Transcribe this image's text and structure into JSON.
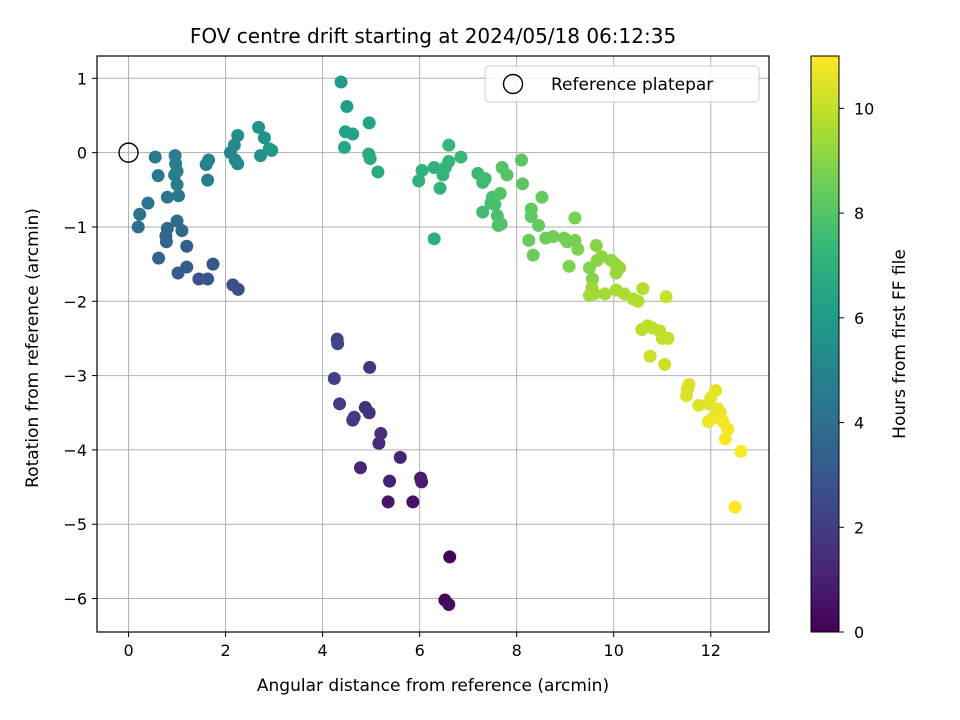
{
  "chart_data": {
    "type": "scatter",
    "title": "FOV centre drift starting at 2024/05/18 06:12:35",
    "xlabel": "Angular distance from reference (arcmin)",
    "ylabel": "Rotation from reference (arcmin)",
    "xlim": [
      -0.65,
      13.2
    ],
    "ylim": [
      -6.45,
      1.3
    ],
    "xticks": [
      0,
      2,
      4,
      6,
      8,
      10,
      12
    ],
    "yticks": [
      1,
      0,
      -1,
      -2,
      -3,
      -4,
      -5,
      -6
    ],
    "grid": true,
    "legend": {
      "label": "Reference platepar",
      "position": "top-right"
    },
    "reference_point": [
      0,
      0
    ],
    "colorbar": {
      "label": "Hours from first FF file",
      "range": [
        0,
        11
      ],
      "ticks": [
        0,
        2,
        4,
        6,
        8,
        10
      ],
      "colormap": "viridis"
    },
    "colormap_stops": [
      "#440154",
      "#482878",
      "#3e4989",
      "#31688e",
      "#26828e",
      "#1f9e89",
      "#35b779",
      "#6ece58",
      "#b5de2b",
      "#fde725"
    ],
    "series": [
      {
        "points": [
          [
            6.62,
            -5.44,
            0.1
          ],
          [
            6.52,
            -6.02,
            0.2
          ],
          [
            6.6,
            -6.08,
            0.3
          ],
          [
            5.86,
            -4.7,
            0.6
          ],
          [
            5.35,
            -4.7,
            0.7
          ],
          [
            6.02,
            -4.38,
            0.8
          ],
          [
            6.04,
            -4.43,
            0.9
          ],
          [
            5.38,
            -4.42,
            1.0
          ],
          [
            5.6,
            -4.1,
            1.1
          ],
          [
            4.78,
            -4.24,
            1.2
          ],
          [
            5.16,
            -3.91,
            1.3
          ],
          [
            5.2,
            -3.78,
            1.4
          ],
          [
            4.96,
            -3.5,
            1.5
          ],
          [
            4.88,
            -3.43,
            1.6
          ],
          [
            4.97,
            -2.89,
            1.7
          ],
          [
            4.62,
            -3.6,
            1.8
          ],
          [
            4.65,
            -3.56,
            1.9
          ],
          [
            4.35,
            -3.38,
            2.0
          ],
          [
            4.24,
            -3.04,
            2.1
          ],
          [
            4.3,
            -2.51,
            2.2
          ],
          [
            4.31,
            -2.57,
            2.3
          ],
          [
            2.26,
            -1.84,
            2.6
          ],
          [
            2.15,
            -1.78,
            2.7
          ],
          [
            1.45,
            -1.7,
            2.8
          ],
          [
            1.63,
            -1.7,
            2.9
          ],
          [
            1.74,
            -1.5,
            3.0
          ],
          [
            1.2,
            -1.54,
            3.1
          ],
          [
            1.02,
            -1.62,
            3.2
          ],
          [
            1.2,
            -1.26,
            3.3
          ],
          [
            0.62,
            -1.42,
            3.4
          ],
          [
            0.78,
            -1.2,
            3.5
          ],
          [
            0.77,
            -1.12,
            3.6
          ],
          [
            0.8,
            -1.02,
            3.7
          ],
          [
            1.1,
            -1.05,
            3.8
          ],
          [
            1.0,
            -0.92,
            3.9
          ],
          [
            0.2,
            -1.0,
            4.0
          ],
          [
            0.23,
            -0.83,
            4.1
          ],
          [
            0.4,
            -0.68,
            4.2
          ],
          [
            0.8,
            -0.6,
            4.3
          ],
          [
            1.03,
            -0.58,
            4.35
          ],
          [
            0.61,
            -0.31,
            4.4
          ],
          [
            0.55,
            -0.06,
            4.45
          ],
          [
            1.0,
            -0.43,
            4.5
          ],
          [
            0.95,
            -0.3,
            4.55
          ],
          [
            0.96,
            -0.04,
            4.6
          ],
          [
            0.97,
            -0.15,
            4.65
          ],
          [
            1.0,
            -0.25,
            4.7
          ],
          [
            1.63,
            -0.37,
            4.75
          ],
          [
            1.6,
            -0.16,
            4.8
          ],
          [
            1.65,
            -0.1,
            4.9
          ],
          [
            2.1,
            0.0,
            5.0
          ],
          [
            2.2,
            -0.1,
            5.1
          ],
          [
            2.25,
            -0.15,
            5.2
          ],
          [
            2.18,
            0.1,
            5.3
          ],
          [
            2.25,
            0.23,
            5.4
          ],
          [
            2.72,
            -0.04,
            5.5
          ],
          [
            2.68,
            0.34,
            5.6
          ],
          [
            2.8,
            0.2,
            5.7
          ],
          [
            2.9,
            0.05,
            5.8
          ],
          [
            2.95,
            0.03,
            5.9
          ],
          [
            4.38,
            0.95,
            6.0
          ],
          [
            4.5,
            0.62,
            6.1
          ],
          [
            4.47,
            0.28,
            6.2
          ],
          [
            4.62,
            0.25,
            6.3
          ],
          [
            4.96,
            0.4,
            6.4
          ],
          [
            4.45,
            0.07,
            6.5
          ],
          [
            4.95,
            -0.02,
            6.6
          ],
          [
            4.98,
            -0.08,
            6.7
          ],
          [
            5.14,
            -0.26,
            6.8
          ],
          [
            6.3,
            -1.16,
            6.9
          ],
          [
            5.98,
            -0.38,
            7.0
          ],
          [
            6.05,
            -0.24,
            7.05
          ],
          [
            6.3,
            -0.2,
            7.1
          ],
          [
            6.42,
            -0.48,
            7.15
          ],
          [
            6.48,
            -0.3,
            7.2
          ],
          [
            6.53,
            -0.2,
            7.25
          ],
          [
            6.6,
            -0.12,
            7.3
          ],
          [
            6.6,
            0.1,
            7.35
          ],
          [
            6.85,
            -0.06,
            7.4
          ],
          [
            7.2,
            -0.28,
            7.45
          ],
          [
            7.3,
            -0.4,
            7.5
          ],
          [
            7.35,
            -0.35,
            7.55
          ],
          [
            7.3,
            -0.8,
            7.6
          ],
          [
            7.47,
            -0.68,
            7.65
          ],
          [
            7.5,
            -0.6,
            7.7
          ],
          [
            7.55,
            -0.7,
            7.75
          ],
          [
            7.6,
            -0.85,
            7.8
          ],
          [
            7.62,
            -0.98,
            7.85
          ],
          [
            7.68,
            -0.96,
            7.9
          ],
          [
            7.66,
            -0.55,
            7.95
          ],
          [
            7.7,
            -0.2,
            8.0
          ],
          [
            7.8,
            -0.3,
            8.05
          ],
          [
            8.1,
            -0.1,
            8.1
          ],
          [
            8.12,
            -0.42,
            8.15
          ],
          [
            8.3,
            -0.76,
            8.2
          ],
          [
            8.3,
            -0.86,
            8.25
          ],
          [
            8.45,
            -0.98,
            8.3
          ],
          [
            8.52,
            -0.6,
            8.35
          ],
          [
            8.25,
            -1.18,
            8.4
          ],
          [
            8.34,
            -1.38,
            8.45
          ],
          [
            8.6,
            -1.15,
            8.5
          ],
          [
            8.75,
            -1.13,
            8.55
          ],
          [
            8.98,
            -1.15,
            8.6
          ],
          [
            9.04,
            -1.2,
            8.65
          ],
          [
            9.2,
            -1.18,
            8.7
          ],
          [
            9.2,
            -0.88,
            8.75
          ],
          [
            9.26,
            -1.3,
            8.8
          ],
          [
            9.08,
            -1.53,
            8.85
          ],
          [
            9.5,
            -1.55,
            8.9
          ],
          [
            9.56,
            -1.7,
            8.95
          ],
          [
            9.64,
            -1.25,
            9.0
          ],
          [
            9.66,
            -1.45,
            9.05
          ],
          [
            9.75,
            -1.4,
            9.1
          ],
          [
            9.95,
            -1.45,
            9.15
          ],
          [
            10.04,
            -1.5,
            9.2
          ],
          [
            10.12,
            -1.55,
            9.25
          ],
          [
            10.05,
            -1.62,
            9.3
          ],
          [
            9.55,
            -1.82,
            9.35
          ],
          [
            9.6,
            -1.9,
            9.4
          ],
          [
            9.5,
            -1.92,
            9.45
          ],
          [
            9.82,
            -1.9,
            9.5
          ],
          [
            10.05,
            -1.85,
            9.55
          ],
          [
            10.22,
            -1.9,
            9.6
          ],
          [
            10.4,
            -1.97,
            9.65
          ],
          [
            10.5,
            -2.0,
            9.7
          ],
          [
            10.6,
            -1.83,
            9.75
          ],
          [
            10.58,
            -2.38,
            9.8
          ],
          [
            10.7,
            -2.33,
            9.85
          ],
          [
            10.8,
            -2.36,
            9.9
          ],
          [
            10.95,
            -2.4,
            9.95
          ],
          [
            11.0,
            -2.5,
            10.0
          ],
          [
            11.12,
            -2.5,
            10.05
          ],
          [
            11.08,
            -1.94,
            10.1
          ],
          [
            10.75,
            -2.74,
            10.15
          ],
          [
            11.05,
            -2.85,
            10.2
          ],
          [
            11.52,
            -3.18,
            10.3
          ],
          [
            11.55,
            -3.12,
            10.35
          ],
          [
            11.5,
            -3.27,
            10.4
          ],
          [
            11.75,
            -3.4,
            10.45
          ],
          [
            11.95,
            -3.38,
            10.5
          ],
          [
            12.0,
            -3.3,
            10.55
          ],
          [
            12.1,
            -3.2,
            10.6
          ],
          [
            12.15,
            -3.45,
            10.65
          ],
          [
            12.2,
            -3.5,
            10.7
          ],
          [
            11.95,
            -3.62,
            10.75
          ],
          [
            12.05,
            -3.57,
            10.8
          ],
          [
            12.25,
            -3.62,
            10.82
          ],
          [
            12.35,
            -3.72,
            10.85
          ],
          [
            12.3,
            -3.85,
            10.9
          ],
          [
            12.62,
            -4.02,
            10.95
          ],
          [
            12.5,
            -4.77,
            11.0
          ]
        ]
      }
    ]
  }
}
